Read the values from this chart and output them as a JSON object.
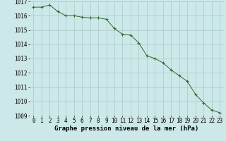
{
  "x": [
    0,
    1,
    2,
    3,
    4,
    5,
    6,
    7,
    8,
    9,
    10,
    11,
    12,
    13,
    14,
    15,
    16,
    17,
    18,
    19,
    20,
    21,
    22,
    23
  ],
  "y": [
    1016.6,
    1016.6,
    1016.75,
    1016.3,
    1016.0,
    1016.0,
    1015.9,
    1015.85,
    1015.85,
    1015.75,
    1015.1,
    1014.7,
    1014.65,
    1014.1,
    1013.2,
    1013.0,
    1012.7,
    1012.2,
    1011.8,
    1011.4,
    1010.5,
    1009.9,
    1009.4,
    1009.2
  ],
  "ylim": [
    1009,
    1017
  ],
  "yticks": [
    1009,
    1010,
    1011,
    1012,
    1013,
    1014,
    1015,
    1016,
    1017
  ],
  "xticks": [
    0,
    1,
    2,
    3,
    4,
    5,
    6,
    7,
    8,
    9,
    10,
    11,
    12,
    13,
    14,
    15,
    16,
    17,
    18,
    19,
    20,
    21,
    22,
    23
  ],
  "xlabel": "Graphe pression niveau de la mer (hPa)",
  "line_color": "#2d6a2d",
  "marker": "+",
  "bg_color": "#cce8e8",
  "grid_color": "#aac8c8",
  "tick_fontsize": 5.5,
  "xlabel_fontsize": 6.5
}
